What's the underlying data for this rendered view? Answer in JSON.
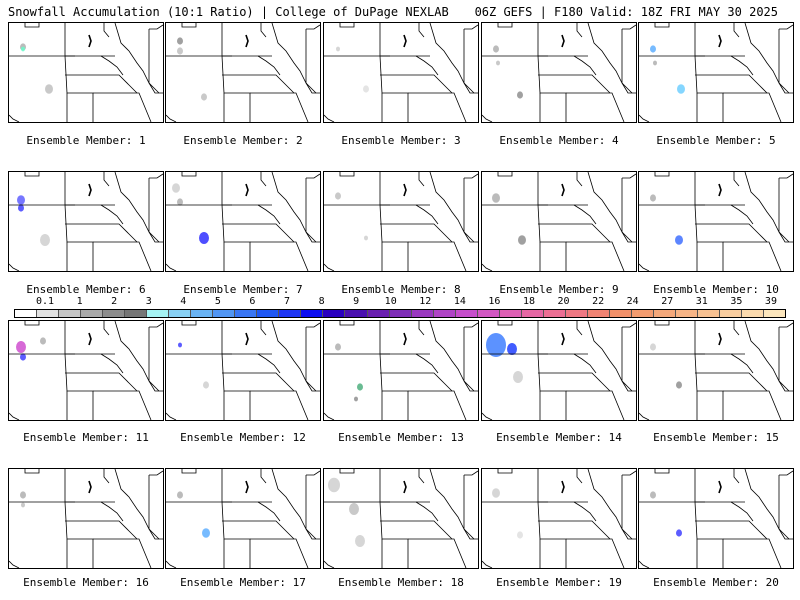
{
  "header": {
    "left": "Snowfall Accumulation (10:1 Ratio) | College of DuPage NEXLAB",
    "right": "06Z GEFS | F180 Valid: 18Z FRI MAY 30 2025"
  },
  "panels": [
    {
      "label": "Ensemble Member: 1"
    },
    {
      "label": "Ensemble Member: 2"
    },
    {
      "label": "Ensemble Member: 3"
    },
    {
      "label": "Ensemble Member: 4"
    },
    {
      "label": "Ensemble Member: 5"
    },
    {
      "label": "Ensemble Member: 6"
    },
    {
      "label": "Ensemble Member: 7"
    },
    {
      "label": "Ensemble Member: 8"
    },
    {
      "label": "Ensemble Member: 9"
    },
    {
      "label": "Ensemble Member: 10"
    },
    {
      "label": "Ensemble Member: 11"
    },
    {
      "label": "Ensemble Member: 12"
    },
    {
      "label": "Ensemble Member: 13"
    },
    {
      "label": "Ensemble Member: 14"
    },
    {
      "label": "Ensemble Member: 15"
    },
    {
      "label": "Ensemble Member: 16"
    },
    {
      "label": "Ensemble Member: 17"
    },
    {
      "label": "Ensemble Member: 18"
    },
    {
      "label": "Ensemble Member: 19"
    },
    {
      "label": "Ensemble Member: 20"
    }
  ],
  "colorbar": {
    "labels": [
      "0.1",
      "1",
      "2",
      "3",
      "4",
      "5",
      "6",
      "7",
      "8",
      "9",
      "10",
      "12",
      "14",
      "16",
      "18",
      "20",
      "22",
      "24",
      "27",
      "31",
      "35",
      "39"
    ],
    "colors": [
      "#ffffff",
      "#e2e2e2",
      "#c6c6c6",
      "#a9a9a9",
      "#8c8c8c",
      "#767676",
      "#a6f3f3",
      "#88d0f3",
      "#6ab3f3",
      "#5296f3",
      "#3a76f3",
      "#1f57f3",
      "#1f36f3",
      "#0d0ef0",
      "#2a00c0",
      "#4a10b0",
      "#6a1fb0",
      "#7f2db8",
      "#9a38c0",
      "#b044c6",
      "#c64ecb",
      "#d257c3",
      "#de5fb4",
      "#e567a4",
      "#ec6f94",
      "#ef7883",
      "#f08373",
      "#f29069",
      "#f39c70",
      "#f4a87b",
      "#f6b486",
      "#f7c192",
      "#f9cd9f",
      "#fbdaae",
      "#fce6bd"
    ]
  }
}
